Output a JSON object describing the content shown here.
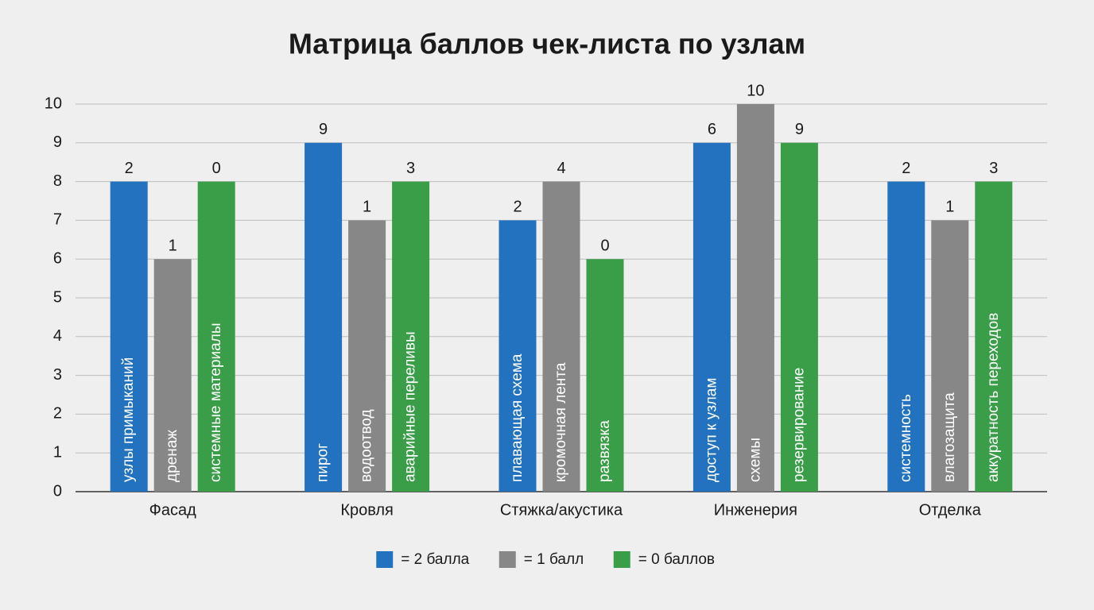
{
  "chart_data": {
    "type": "bar",
    "title": "Матрица баллов чек-листа по узлам",
    "categories": [
      "Фасад",
      "Кровля",
      "Стяжка/акустика",
      "Инженерия",
      "Отделка"
    ],
    "series": [
      {
        "name": "= 2 балла",
        "color": "#2272bf",
        "values": [
          8,
          9,
          7,
          9,
          8
        ],
        "counts": [
          2,
          9,
          2,
          6,
          2
        ],
        "bar_labels": [
          "узлы примыканий",
          "пирог",
          "плавающая схема",
          "доступ к узлам",
          "системность"
        ]
      },
      {
        "name": "= 1 балл",
        "color": "#878787",
        "values": [
          6,
          7,
          8,
          10,
          7
        ],
        "counts": [
          1,
          1,
          4,
          10,
          1
        ],
        "bar_labels": [
          "дренаж",
          "водоотвод",
          "кромочная лента",
          "схемы",
          "влагозащита"
        ]
      },
      {
        "name": "= 0 баллов",
        "color": "#3a9e48",
        "values": [
          8,
          8,
          6,
          9,
          8
        ],
        "counts": [
          0,
          3,
          0,
          9,
          3
        ],
        "bar_labels": [
          "системные материалы",
          "аварийные переливы",
          "развязка",
          "резервирование",
          "аккуратность переходов"
        ]
      }
    ],
    "ylim": [
      0,
      10
    ],
    "yticks": [
      0,
      1,
      2,
      3,
      4,
      5,
      6,
      7,
      8,
      9,
      10
    ],
    "grid": true
  }
}
